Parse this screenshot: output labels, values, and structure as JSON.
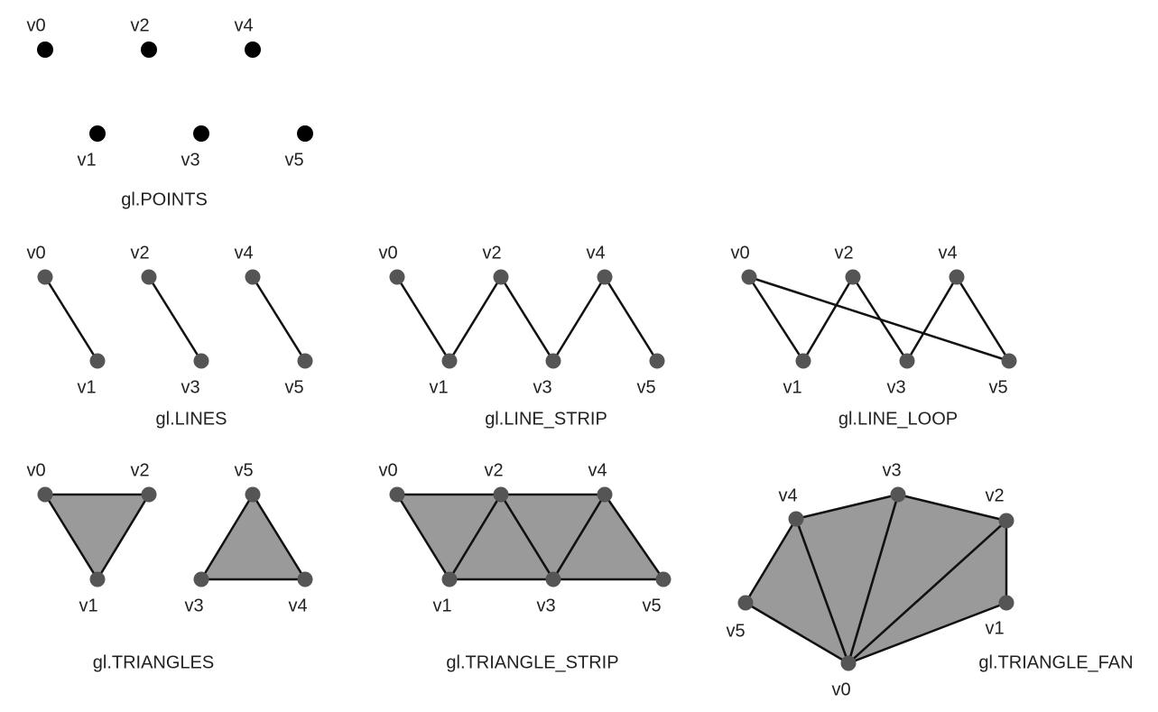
{
  "diagrams": [
    {
      "title": "gl.POINTS",
      "vertices": [
        "v0",
        "v1",
        "v2",
        "v3",
        "v4",
        "v5"
      ]
    },
    {
      "title": "gl.LINES",
      "vertices": [
        "v0",
        "v1",
        "v2",
        "v3",
        "v4",
        "v5"
      ]
    },
    {
      "title": "gl.LINE_STRIP",
      "vertices": [
        "v0",
        "v1",
        "v2",
        "v3",
        "v4",
        "v5"
      ]
    },
    {
      "title": "gl.LINE_LOOP",
      "vertices": [
        "v0",
        "v1",
        "v2",
        "v3",
        "v4",
        "v5"
      ]
    },
    {
      "title": "gl.TRIANGLES",
      "vertices": [
        "v0",
        "v1",
        "v2",
        "v3",
        "v4",
        "v5"
      ]
    },
    {
      "title": "gl.TRIANGLE_STRIP",
      "vertices": [
        "v0",
        "v1",
        "v2",
        "v3",
        "v4",
        "v5"
      ]
    },
    {
      "title": "gl.TRIANGLE_FAN",
      "vertices": [
        "v0",
        "v1",
        "v2",
        "v3",
        "v4",
        "v5"
      ]
    }
  ]
}
